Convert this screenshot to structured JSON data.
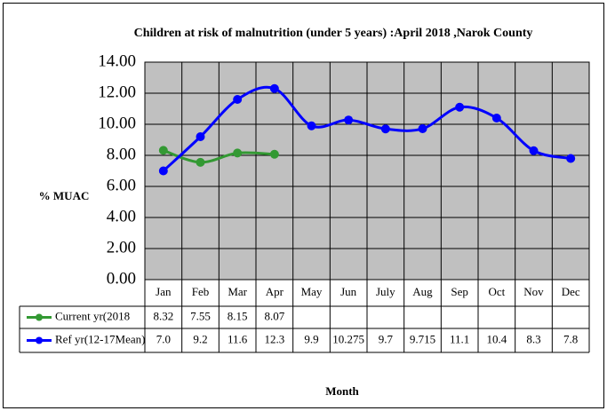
{
  "chart_data": {
    "type": "line",
    "title": "Children at risk of malnutrition (under 5 years) :April  2018 ,Narok County",
    "y_label": "% MUAC",
    "x_label": "Month",
    "categories": [
      "Jan",
      "Feb",
      "Mar",
      "Apr",
      "May",
      "Jun",
      "July",
      "Aug",
      "Sep",
      "Oct",
      "Nov",
      "Dec"
    ],
    "series": [
      {
        "name": "Current yr(2018",
        "color": "#339933",
        "values": [
          8.32,
          7.55,
          8.15,
          8.07,
          null,
          null,
          null,
          null,
          null,
          null,
          null,
          null
        ]
      },
      {
        "name": "Ref yr(12-17Mean)",
        "color": "#0000ff",
        "values": [
          7.0,
          9.2,
          11.6,
          12.3,
          9.9,
          10.275,
          9.7,
          9.715,
          11.1,
          10.4,
          8.3,
          7.8
        ],
        "value_labels": [
          "7.0",
          "9.2",
          "11.6",
          "12.3",
          "9.9",
          "10.275",
          "9.7",
          "9.715",
          "11.1",
          "10.4",
          "8.3",
          "7.8"
        ]
      }
    ],
    "ylim": [
      0,
      14
    ],
    "yticks": [
      {
        "value": 0,
        "label": "0.00"
      },
      {
        "value": 2,
        "label": "2.00"
      },
      {
        "value": 4,
        "label": "4.00"
      },
      {
        "value": 6,
        "label": "6.00"
      },
      {
        "value": 8,
        "label": "8.00"
      },
      {
        "value": 10,
        "label": "10.00"
      },
      {
        "value": 12,
        "label": "12.00"
      },
      {
        "value": 14,
        "label": "14.00"
      }
    ],
    "grid": true,
    "plot_background": "#c0c0c0",
    "smooth": true
  }
}
